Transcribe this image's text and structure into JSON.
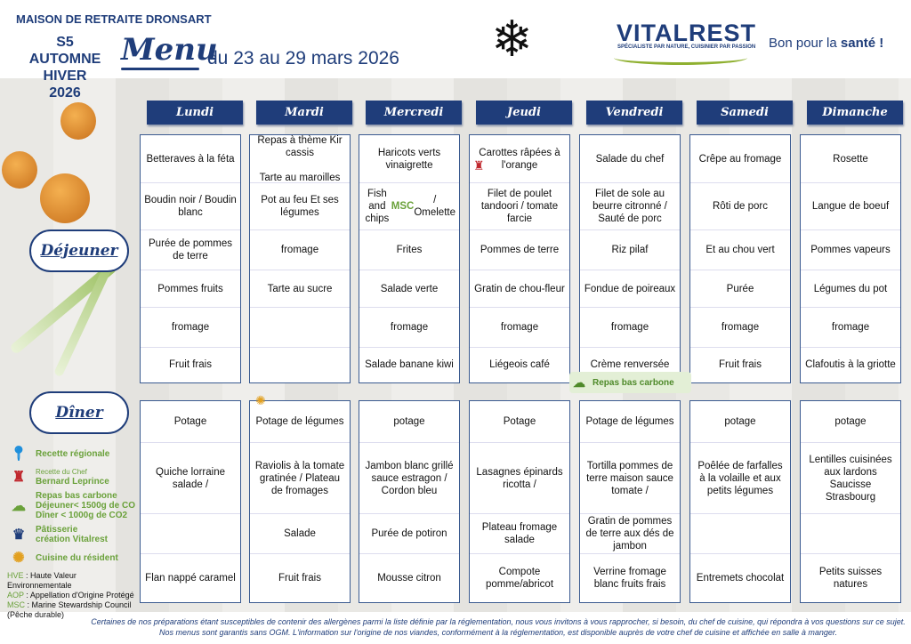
{
  "header": {
    "residence": "MAISON DE RETRAITE DRONSART",
    "week": "S5",
    "season1": "AUTOMNE",
    "season2": "HIVER",
    "year": "2026",
    "menu_word": "Menu",
    "dates": "du 23 au 29 mars 2026",
    "brand": "VITALREST",
    "brand_tagline": "SPÉCIALISTE PAR NATURE, CUISINIER PAR PASSION",
    "slogan_pre": "Bon pour la ",
    "slogan_bold": "santé !",
    "season_icon": "snowflake-icon"
  },
  "days": [
    "Lundi",
    "Mardi",
    "Mercredi",
    "Jeudi",
    "Vendredi",
    "Samedi",
    "Dimanche"
  ],
  "meals": {
    "lunch": "Déjeuner",
    "dinner": "Dîner"
  },
  "lunch": [
    [
      "Betteraves à la féta",
      "Boudin noir / Boudin blanc",
      "Purée de pommes de terre",
      "Pommes fruits",
      "fromage",
      "Fruit frais"
    ],
    [
      "Repas à thème Kir cassis\n\nTarte au maroilles",
      "Pot au feu Et ses légumes",
      "fromage",
      "Tarte au sucre",
      "",
      ""
    ],
    [
      "Haricots verts vinaigrette",
      "Fish and chips |MSC| / Omelette",
      "Frites",
      "Salade verte",
      "fromage",
      "Salade banane kiwi"
    ],
    [
      "Carottes râpées à l'orange",
      "Filet de poulet tandoori / tomate farcie",
      "Pommes de terre",
      "Gratin de chou-fleur",
      "fromage",
      "Liégeois café"
    ],
    [
      "Salade du chef",
      "Filet de sole au beurre citronné / Sauté de porc",
      "Riz pilaf",
      "Fondue de poireaux",
      "fromage",
      "Crème renversée"
    ],
    [
      "Crêpe au fromage",
      "Rôti de porc",
      "Et au chou vert",
      "Purée",
      "fromage",
      "Fruit frais"
    ],
    [
      "Rosette",
      "Langue de boeuf",
      "Pommes vapeurs",
      "Légumes du pot",
      "fromage",
      "Clafoutis à la griotte"
    ]
  ],
  "dinner": [
    [
      "Potage",
      "Quiche lorraine salade /",
      "",
      "Flan nappé caramel"
    ],
    [
      "Potage de légumes",
      "Raviolis à la tomate gratinée / Plateau de fromages",
      "Salade",
      "Fruit frais"
    ],
    [
      "potage",
      "Jambon blanc grillé sauce estragon / Cordon bleu",
      "Purée de potiron",
      "Mousse citron"
    ],
    [
      "Potage",
      "Lasagnes épinards ricotta /",
      "Plateau fromage salade",
      "Compote pomme/abricot"
    ],
    [
      "Potage de légumes",
      "Tortilla pommes de terre maison sauce tomate /",
      "Gratin de pommes de terre aux dés de jambon",
      "Verrine fromage blanc fruits frais"
    ],
    [
      "potage",
      "Poêlée de farfalles à la volaille et aux petits légumes",
      "",
      "Entremets chocolat"
    ],
    [
      "potage",
      "Lentilles cuisinées aux lardons Saucisse Strasbourg",
      "",
      "Petits suisses natures"
    ]
  ],
  "carbon_badge": "Repas bas carbone",
  "legend": {
    "regional": "Recette régionale",
    "chef1": "Recette du Chef",
    "chef2": "Bernard Leprince",
    "carbon1": "Repas bas carbone",
    "carbon2": "Déjeuner< 1500g de CO",
    "carbon3": "Dîner < 1000g de CO2",
    "pastry1": "Pâtisserie",
    "pastry2": "création Vitalrest",
    "resident": "Cuisine du résident",
    "hve_k": "HVE",
    "hve_v": " : Haute Valeur Environnementale",
    "aop_k": "AOP",
    "aop_v": " : Appellation d'Origine Protégé",
    "msc_k": "MSC",
    "msc_v": " : Marine Stewardship Council (Pêche durable)"
  },
  "footer": "Certaines de nos préparations étant susceptibles de contenir des allergènes parmi la liste définie par la réglementation, nous vous invitons à vous rapprocher, si besoin, du chef de cuisine, qui répondra à vos questions sur ce sujet. Nos menus sont garantis sans OGM. L'information sur l'origine de nos viandes, conformément à la réglementation, est disponible auprès de votre chef de cuisine et affichée en salle à manger.",
  "colors": {
    "navy": "#1f3d7a",
    "green": "#6aa13a"
  }
}
